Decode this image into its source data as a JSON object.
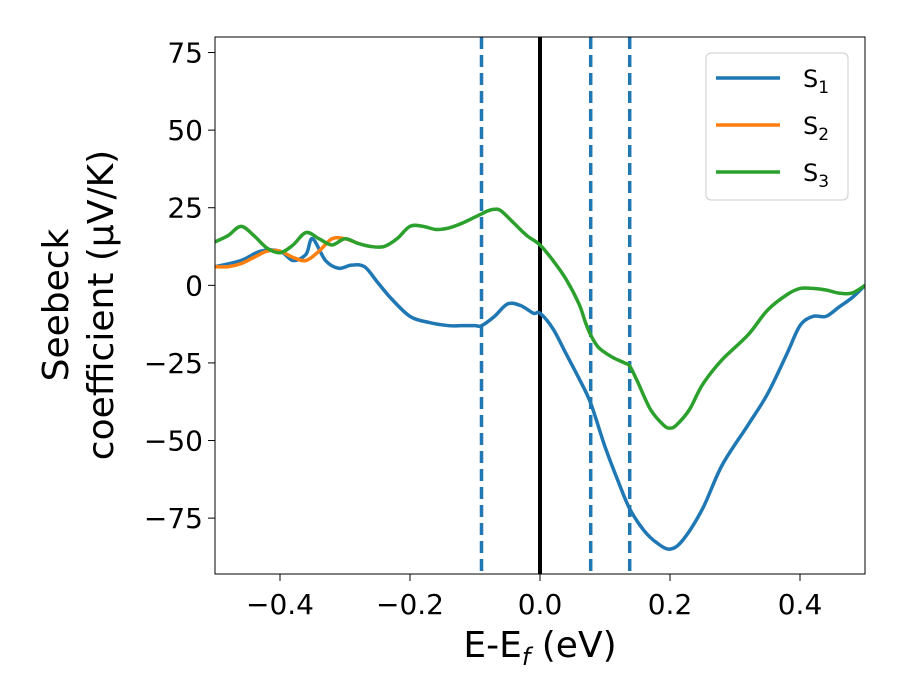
{
  "chart_data": {
    "type": "line",
    "xlabel_main": "E-E",
    "xlabel_sub": "f",
    "xlabel_unit": " (eV)",
    "ylabel_line1": "Seebeck",
    "ylabel_line2": "coefficient  (μV/K)",
    "xlim": [
      -0.5,
      0.5
    ],
    "ylim": [
      -93,
      80
    ],
    "x_ticks": [
      -0.4,
      -0.2,
      0.0,
      0.2,
      0.4
    ],
    "x_tick_labels": [
      "−0.4",
      "−0.2",
      "0.0",
      "0.2",
      "0.4"
    ],
    "y_ticks": [
      75,
      50,
      25,
      0,
      -25,
      -50,
      -75
    ],
    "y_tick_labels": [
      "75",
      "50",
      "25",
      "0",
      "−25",
      "−50",
      "−75"
    ],
    "grid": false,
    "legend_position": "top-right",
    "vertical_lines": [
      {
        "x": -0.09,
        "style": "dashed",
        "color": "#1f77b4"
      },
      {
        "x": 0.0,
        "style": "solid",
        "color": "#000000"
      },
      {
        "x": 0.078,
        "style": "dashed",
        "color": "#1f77b4"
      },
      {
        "x": 0.138,
        "style": "dashed",
        "color": "#1f77b4"
      }
    ],
    "series": [
      {
        "name": "S",
        "subscript": "1",
        "color": "#1f77b4",
        "x": [
          -0.5,
          -0.46,
          -0.43,
          -0.4,
          -0.38,
          -0.36,
          -0.35,
          -0.33,
          -0.31,
          -0.29,
          -0.27,
          -0.25,
          -0.23,
          -0.2,
          -0.17,
          -0.14,
          -0.12,
          -0.1,
          -0.09,
          -0.07,
          -0.05,
          -0.03,
          -0.01,
          0.0,
          0.02,
          0.04,
          0.06,
          0.078,
          0.1,
          0.12,
          0.138,
          0.16,
          0.18,
          0.2,
          0.22,
          0.25,
          0.28,
          0.32,
          0.35,
          0.38,
          0.4,
          0.42,
          0.44,
          0.46,
          0.48,
          0.5
        ],
        "y": [
          6,
          8,
          11,
          11,
          8,
          10,
          15,
          8,
          5.5,
          6.5,
          6,
          1,
          -4,
          -10,
          -12,
          -13,
          -13,
          -13,
          -13,
          -10,
          -6,
          -6.5,
          -9,
          -9,
          -14,
          -22,
          -30,
          -38,
          -52,
          -63,
          -72,
          -79,
          -83,
          -85,
          -82,
          -72,
          -58,
          -45,
          -35,
          -22,
          -13,
          -10,
          -10,
          -7,
          -4,
          0
        ]
      },
      {
        "name": "S",
        "subscript": "2",
        "color": "#ff7f0e",
        "x": [
          -0.5,
          -0.48,
          -0.46,
          -0.44,
          -0.42,
          -0.4,
          -0.38,
          -0.36,
          -0.34,
          -0.32,
          -0.3,
          -0.28
        ],
        "y": [
          6,
          6,
          7,
          9,
          11,
          11,
          9,
          8,
          11,
          15,
          15,
          13.5
        ]
      },
      {
        "name": "S",
        "subscript": "3",
        "color": "#2ca02c",
        "x": [
          -0.5,
          -0.48,
          -0.46,
          -0.44,
          -0.42,
          -0.4,
          -0.38,
          -0.36,
          -0.34,
          -0.32,
          -0.3,
          -0.28,
          -0.26,
          -0.24,
          -0.22,
          -0.2,
          -0.18,
          -0.16,
          -0.14,
          -0.12,
          -0.1,
          -0.09,
          -0.08,
          -0.07,
          -0.06,
          -0.04,
          -0.02,
          0.0,
          0.02,
          0.04,
          0.06,
          0.07,
          0.078,
          0.09,
          0.11,
          0.13,
          0.138,
          0.15,
          0.17,
          0.19,
          0.2,
          0.21,
          0.23,
          0.25,
          0.28,
          0.32,
          0.35,
          0.38,
          0.4,
          0.42,
          0.44,
          0.46,
          0.48,
          0.5
        ],
        "y": [
          14,
          16,
          19,
          16,
          12,
          10.5,
          13,
          17,
          15,
          13,
          15,
          13.5,
          12.5,
          12.5,
          15,
          19,
          19,
          18,
          18.5,
          20,
          22,
          23,
          24,
          24.5,
          24,
          20,
          16,
          13,
          8,
          2,
          -6,
          -12,
          -16,
          -20,
          -23,
          -25,
          -26,
          -31,
          -40,
          -45,
          -46,
          -45,
          -40,
          -32,
          -24,
          -16,
          -8,
          -3,
          -1,
          -1,
          -1.5,
          -2.5,
          -2.5,
          0
        ]
      }
    ]
  }
}
